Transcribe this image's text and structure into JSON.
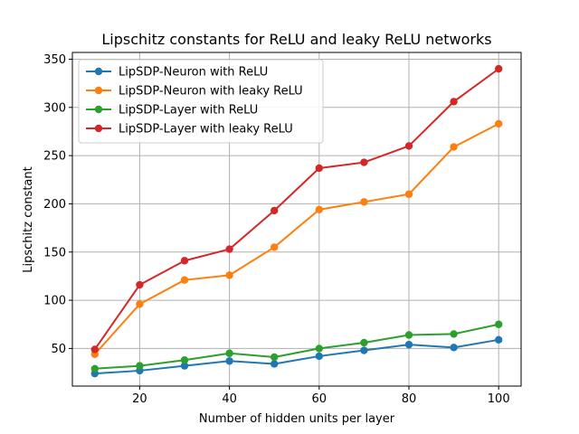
{
  "chart_data": {
    "type": "line",
    "title": "Lipschitz constants for ReLU and leaky ReLU networks",
    "xlabel": "Number of hidden units per layer",
    "ylabel": "Lipschitz constant",
    "x": [
      10,
      20,
      30,
      40,
      50,
      60,
      70,
      80,
      90,
      100
    ],
    "xlim": [
      5,
      105
    ],
    "ylim": [
      11,
      357
    ],
    "xticks": [
      20,
      40,
      60,
      80,
      100
    ],
    "yticks": [
      50,
      100,
      150,
      200,
      250,
      300,
      350
    ],
    "grid": true,
    "legend_position": "top-left",
    "series": [
      {
        "name": "LipSDP-Neuron with ReLU",
        "color": "#1f77b4",
        "values": [
          24,
          27,
          32,
          37,
          34,
          42,
          48,
          54,
          51,
          59
        ]
      },
      {
        "name": "LipSDP-Neuron with leaky ReLU",
        "color": "#ff7f0e",
        "values": [
          44,
          96,
          121,
          126,
          155,
          194,
          202,
          210,
          259,
          283
        ]
      },
      {
        "name": "LipSDP-Layer with ReLU",
        "color": "#2ca02c",
        "values": [
          29,
          32,
          38,
          45,
          41,
          50,
          56,
          64,
          65,
          75
        ]
      },
      {
        "name": "LipSDP-Layer with leaky ReLU",
        "color": "#d62728",
        "values": [
          49,
          116,
          141,
          153,
          193,
          237,
          243,
          260,
          306,
          340
        ]
      }
    ]
  }
}
